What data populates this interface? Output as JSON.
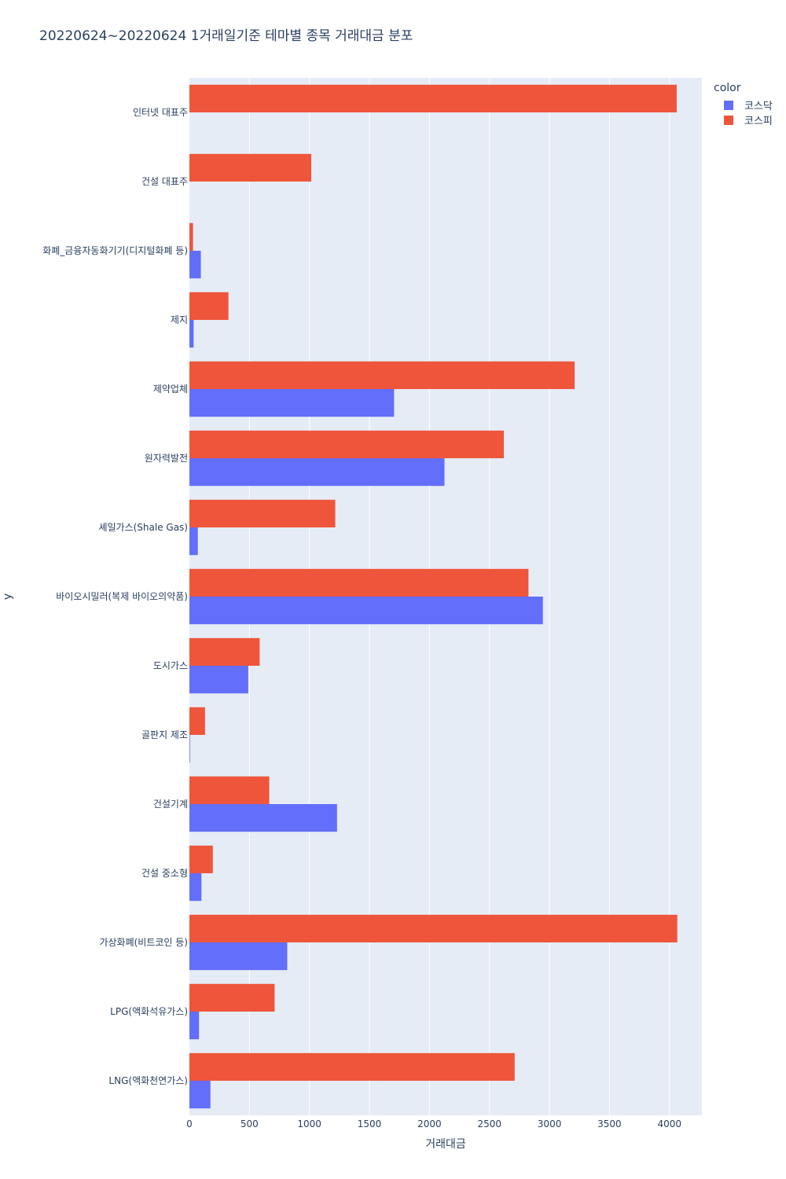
{
  "chart_data": {
    "type": "bar",
    "orientation": "horizontal",
    "title": "20220624~20220624 1거래일기준 테마별 종목 거래대금 분포",
    "xlabel": "거래대금",
    "ylabel": "y",
    "xlim": [
      0,
      4270
    ],
    "xticks": [
      0,
      500,
      1000,
      1500,
      2000,
      2500,
      3000,
      3500,
      4000
    ],
    "grid": true,
    "legend_title": "color",
    "legend_position": "top-right",
    "categories": [
      "인터넷 대표주",
      "건설 대표주",
      "화폐_금융자동화기기(디지털화폐 등)",
      "제지",
      "제약업체",
      "원자력발전",
      "셰일가스(Shale Gas)",
      "바이오시밀러(복제 바이오의약품)",
      "도시가스",
      "골판지 제조",
      "건설기계",
      "건설 중소형",
      "가상화폐(비트코인 등)",
      "LPG(액화석유가스)",
      "LNG(액화천연가스)"
    ],
    "series": [
      {
        "name": "코스닥",
        "color": "#636efa",
        "values": [
          0,
          0,
          95,
          35,
          1705,
          2125,
          70,
          2945,
          490,
          5,
          1230,
          100,
          815,
          80,
          175
        ]
      },
      {
        "name": "코스피",
        "color": "#ef553b",
        "values": [
          4060,
          1015,
          30,
          325,
          3210,
          2620,
          1215,
          2825,
          585,
          130,
          665,
          195,
          4065,
          710,
          2710
        ]
      }
    ]
  }
}
